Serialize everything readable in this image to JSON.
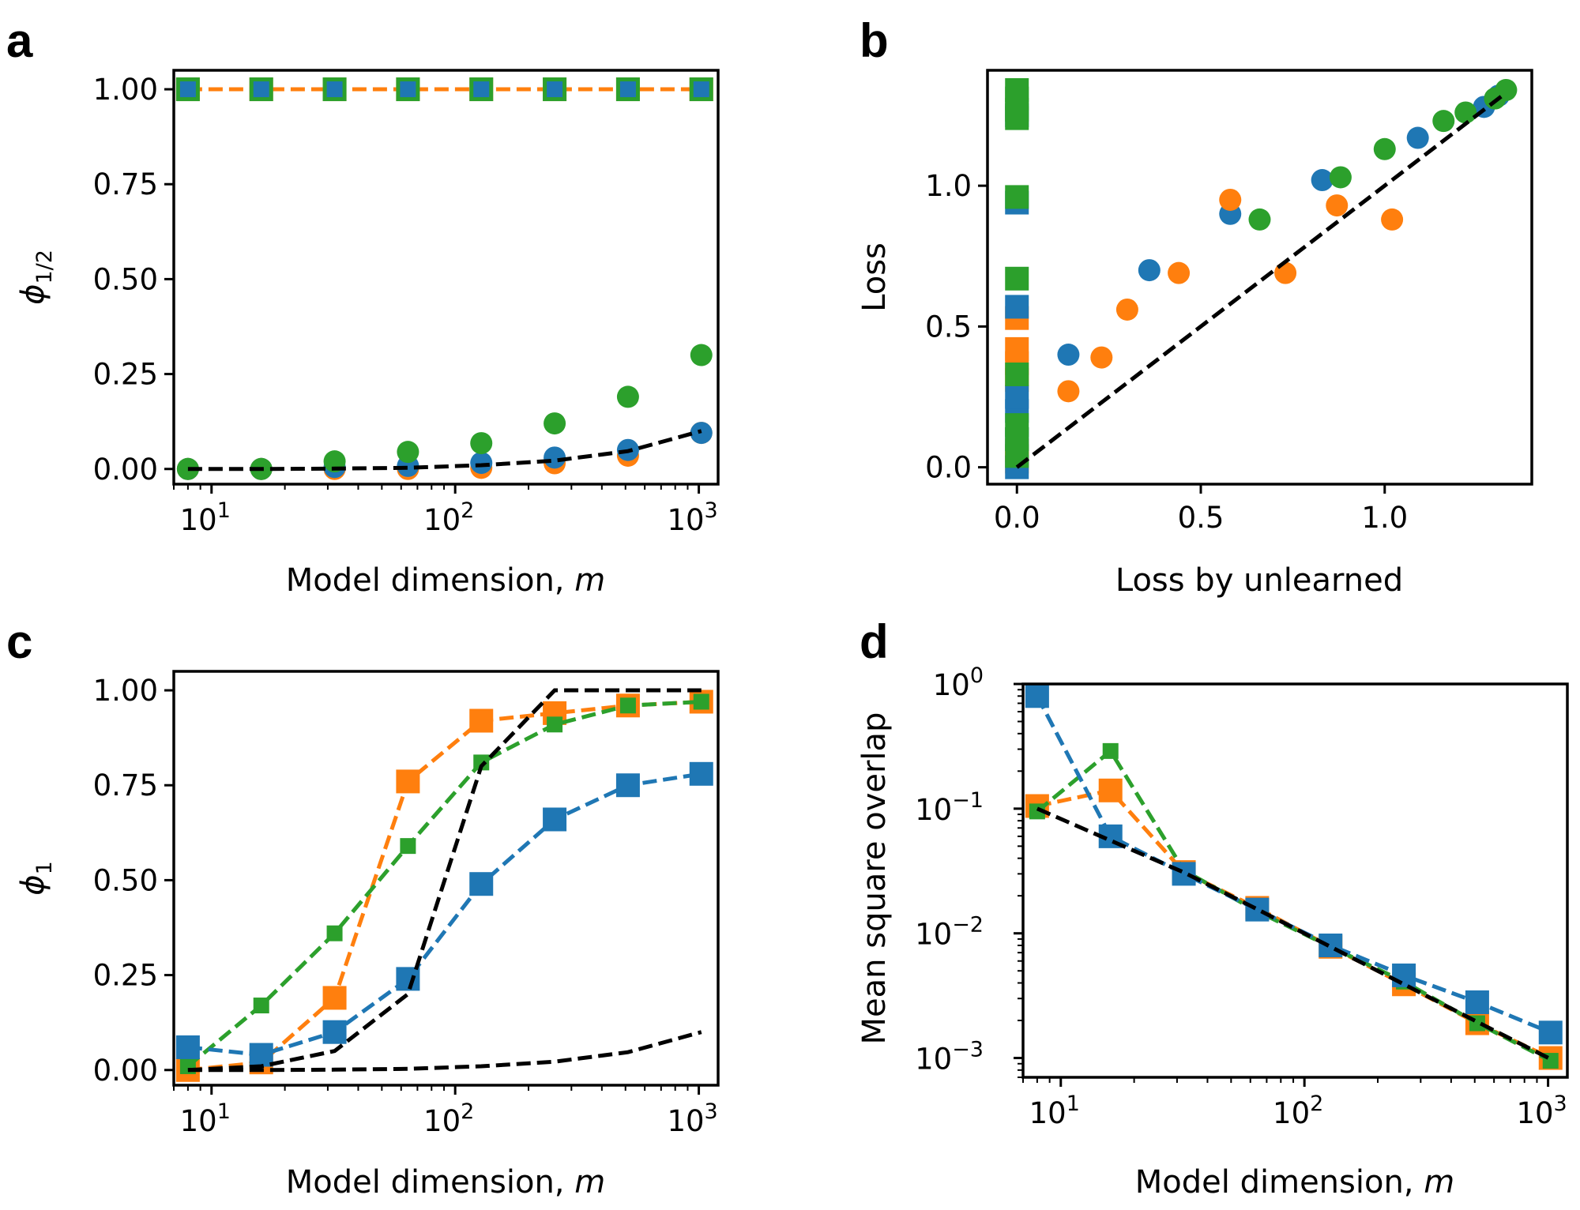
{
  "colors": {
    "blue": "#1f77b4",
    "orange": "#ff7f0e",
    "green": "#2ca02c",
    "black": "#000000"
  },
  "panels": [
    {
      "label": "a",
      "xlabel": "Model dimension, ",
      "xlabel_var": "m",
      "ylabel_main": "ϕ",
      "ylabel_sub": "1/2",
      "ytick_labels": [
        "0.00",
        "0.25",
        "0.50",
        "0.75",
        "1.00"
      ],
      "xtick_bases": [
        "10",
        "10",
        "10"
      ],
      "xtick_exps": [
        "1",
        "2",
        "3"
      ]
    },
    {
      "label": "b",
      "xlabel": "Loss by unlearned",
      "ylabel": "Loss",
      "ytick_labels": [
        "0.0",
        "0.5",
        "1.0"
      ],
      "xtick_labels": [
        "0.0",
        "0.5",
        "1.0"
      ]
    },
    {
      "label": "c",
      "xlabel": "Model dimension, ",
      "xlabel_var": "m",
      "ylabel_main": "ϕ",
      "ylabel_sub": "1",
      "ytick_labels": [
        "0.00",
        "0.25",
        "0.50",
        "0.75",
        "1.00"
      ],
      "xtick_bases": [
        "10",
        "10",
        "10"
      ],
      "xtick_exps": [
        "1",
        "2",
        "3"
      ]
    },
    {
      "label": "d",
      "xlabel": "Model dimension, ",
      "xlabel_var": "m",
      "ylabel": "Mean square overlap",
      "ytick_bases": [
        "10",
        "10",
        "10",
        "10"
      ],
      "ytick_exps": [
        "−3",
        "−2",
        "−1",
        "0"
      ],
      "xtick_bases": [
        "10",
        "10",
        "10"
      ],
      "xtick_exps": [
        "1",
        "2",
        "3"
      ]
    }
  ],
  "chart_data": [
    {
      "panel": "a",
      "type": "scatter",
      "xscale": "log",
      "xlim": [
        7,
        1200
      ],
      "ylim": [
        -0.04,
        1.05
      ],
      "x": [
        8,
        16,
        32,
        64,
        128,
        256,
        512,
        1024
      ],
      "series": [
        {
          "color": "orange",
          "marker": "square",
          "line": "dashed",
          "values": [
            1,
            1,
            1,
            1,
            1,
            1,
            1,
            1
          ]
        },
        {
          "color": "green",
          "marker": "square",
          "line": "none",
          "values": [
            1,
            1,
            1,
            1,
            1,
            1,
            1,
            1
          ]
        },
        {
          "color": "blue",
          "marker": "square-small",
          "line": "none",
          "values": [
            1,
            1,
            1,
            1,
            1,
            1,
            1,
            1
          ]
        },
        {
          "color": "orange",
          "marker": "circle",
          "line": "none",
          "values": [
            0.0,
            0.0,
            0.0,
            0.0,
            0.003,
            0.015,
            0.035,
            0.095
          ]
        },
        {
          "color": "blue",
          "marker": "circle",
          "line": "none",
          "values": [
            0.0,
            0.0,
            0.005,
            0.008,
            0.016,
            0.03,
            0.05,
            0.095
          ]
        },
        {
          "color": "green",
          "marker": "circle",
          "line": "none",
          "values": [
            0.0,
            0.0,
            0.02,
            0.045,
            0.068,
            0.12,
            0.19,
            0.3
          ]
        },
        {
          "color": "black",
          "marker": "none",
          "line": "dashed",
          "values": [
            0.0,
            0.0,
            0.001,
            0.003,
            0.01,
            0.022,
            0.047,
            0.1
          ]
        }
      ]
    },
    {
      "panel": "b",
      "type": "scatter",
      "xlim": [
        -0.08,
        1.4
      ],
      "ylim": [
        -0.06,
        1.41
      ],
      "series": [
        {
          "color": "orange",
          "marker": "square",
          "x": [
            0,
            0,
            0,
            0,
            0,
            0
          ],
          "y": [
            0.31,
            0.37,
            0.42,
            0.53,
            0.06,
            0.02
          ]
        },
        {
          "color": "blue",
          "marker": "square",
          "x": [
            0,
            0,
            0,
            0,
            0,
            0,
            0
          ],
          "y": [
            0.0,
            0.1,
            0.2,
            0.25,
            0.57,
            0.94,
            1.25
          ]
        },
        {
          "color": "green",
          "marker": "square",
          "x": [
            0,
            0,
            0,
            0,
            0,
            0,
            0,
            0,
            0,
            0
          ],
          "y": [
            0.04,
            0.1,
            0.15,
            0.33,
            0.67,
            0.96,
            1.24,
            1.27,
            1.31,
            1.34
          ]
        },
        {
          "color": "blue",
          "marker": "circle",
          "x": [
            0.14,
            0.36,
            0.58,
            0.83,
            1.09,
            1.27,
            1.31
          ],
          "y": [
            0.4,
            0.7,
            0.9,
            1.02,
            1.17,
            1.28,
            1.32
          ]
        },
        {
          "color": "orange",
          "marker": "circle",
          "x": [
            0.14,
            0.23,
            0.3,
            0.44,
            0.58,
            0.73,
            0.87,
            1.02
          ],
          "y": [
            0.27,
            0.39,
            0.56,
            0.69,
            0.95,
            0.69,
            0.93,
            0.88
          ]
        },
        {
          "color": "green",
          "marker": "circle",
          "x": [
            0.66,
            0.88,
            1.0,
            1.16,
            1.22,
            1.3,
            1.33
          ],
          "y": [
            0.88,
            1.03,
            1.13,
            1.23,
            1.26,
            1.31,
            1.34
          ]
        },
        {
          "color": "black",
          "marker": "none",
          "line": "dashed",
          "x": [
            0,
            1.33
          ],
          "y": [
            0,
            1.33
          ]
        }
      ]
    },
    {
      "panel": "c",
      "type": "line",
      "xscale": "log",
      "xlim": [
        7,
        1200
      ],
      "ylim": [
        -0.04,
        1.05
      ],
      "x": [
        8,
        16,
        32,
        64,
        128,
        256,
        512,
        1024
      ],
      "series": [
        {
          "color": "orange",
          "marker": "square",
          "line": "dashed",
          "values": [
            0.0,
            0.02,
            0.19,
            0.76,
            0.92,
            0.94,
            0.96,
            0.97
          ]
        },
        {
          "color": "green",
          "marker": "square-small",
          "line": "dashed",
          "values": [
            0.01,
            0.17,
            0.36,
            0.59,
            0.81,
            0.91,
            0.96,
            0.97
          ]
        },
        {
          "color": "blue",
          "marker": "square",
          "line": "dashed",
          "values": [
            0.06,
            0.04,
            0.1,
            0.24,
            0.49,
            0.66,
            0.75,
            0.78
          ]
        },
        {
          "color": "black",
          "marker": "none",
          "line": "dashed",
          "values": [
            0.0,
            0.01,
            0.05,
            0.2,
            0.8,
            1.0,
            1.0,
            1.0
          ]
        },
        {
          "color": "black",
          "marker": "none",
          "line": "dashed",
          "values": [
            0.0,
            0.0,
            0.001,
            0.003,
            0.01,
            0.022,
            0.047,
            0.1
          ]
        }
      ]
    },
    {
      "panel": "d",
      "type": "line",
      "xscale": "log",
      "yscale": "log",
      "xlim": [
        7,
        1200
      ],
      "ylim": [
        0.0007,
        1.0
      ],
      "x": [
        8,
        16,
        32,
        64,
        128,
        256,
        512,
        1024
      ],
      "series": [
        {
          "color": "orange",
          "marker": "square",
          "line": "dashed",
          "values": [
            0.105,
            0.14,
            0.031,
            0.016,
            0.0078,
            0.0039,
            0.0019,
            0.001
          ]
        },
        {
          "color": "green",
          "marker": "square-small",
          "line": "dashed",
          "values": [
            0.095,
            0.29,
            0.032,
            0.015,
            0.0078,
            0.0041,
            0.0019,
            0.00095
          ]
        },
        {
          "color": "blue",
          "marker": "square",
          "line": "dashed",
          "values": [
            0.8,
            0.06,
            0.03,
            0.0155,
            0.008,
            0.0046,
            0.0028,
            0.0016
          ]
        },
        {
          "color": "black",
          "marker": "none",
          "line": "dashed",
          "values": [
            0.1,
            0.0555,
            0.0308,
            0.0156,
            0.0078,
            0.0039,
            0.00195,
            0.00098
          ]
        }
      ]
    }
  ]
}
